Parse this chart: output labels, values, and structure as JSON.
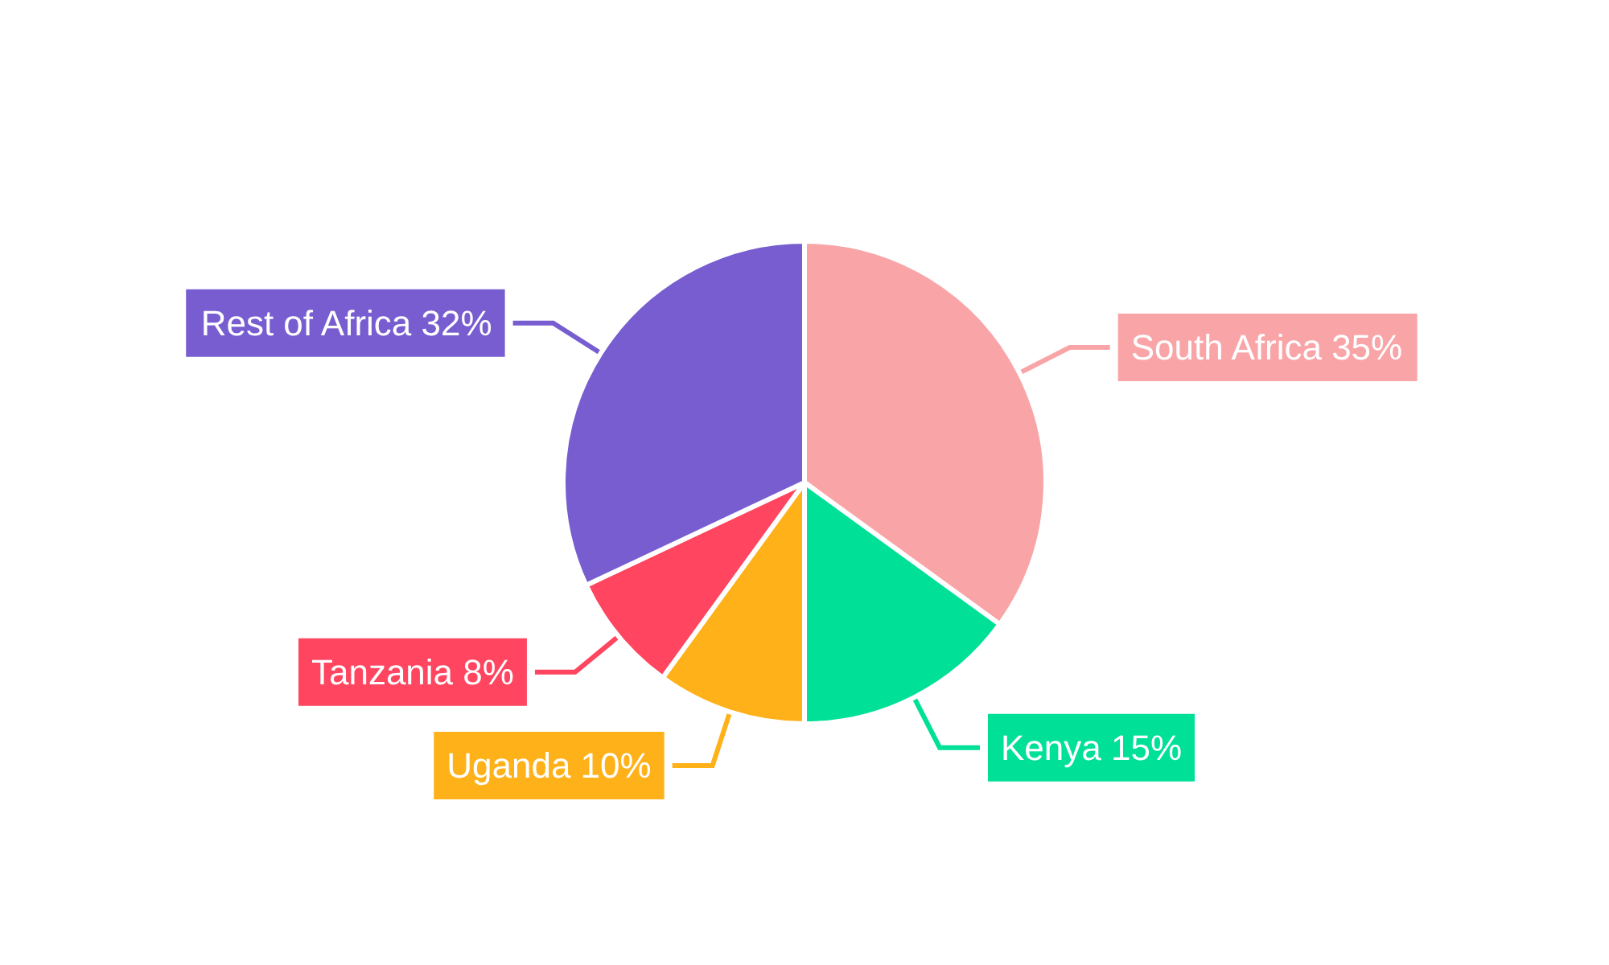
{
  "chart_data": {
    "type": "pie",
    "categories": [
      "South Africa",
      "Kenya",
      "Uganda",
      "Tanzania",
      "Rest of Africa"
    ],
    "values": [
      35,
      15,
      10,
      8,
      32
    ],
    "value_labels": [
      "35%",
      "15%",
      "10%",
      "8%",
      "32%"
    ],
    "colors": [
      "#f9a5a8",
      "#00e096",
      "#ffb11a",
      "#ff4560",
      "#775dd0"
    ],
    "legend": false
  }
}
